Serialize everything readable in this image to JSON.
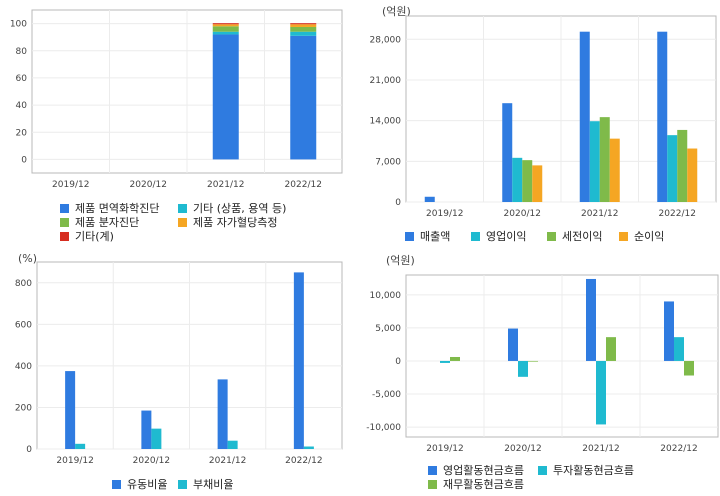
{
  "chart_data": [
    {
      "type": "bar",
      "stacked": true,
      "unit": "",
      "categories": [
        "2019/12",
        "2020/12",
        "2021/12",
        "2022/12"
      ],
      "ylim": [
        -10,
        110
      ],
      "yticks": [
        0,
        20,
        40,
        60,
        80,
        100
      ],
      "grid": true,
      "series": [
        {
          "name": "제품 면역화학진단",
          "color": "#2f7be0",
          "values": [
            0,
            0,
            92,
            91
          ]
        },
        {
          "name": "기타 (상품, 용역 등)",
          "color": "#1fbad0",
          "values": [
            0,
            0,
            2,
            3
          ]
        },
        {
          "name": "제품 분자진단",
          "color": "#7fba4a",
          "values": [
            0,
            0,
            4,
            3.5
          ]
        },
        {
          "name": "제품 자가혈당측정",
          "color": "#f5a623",
          "values": [
            0,
            0,
            1.5,
            2
          ]
        },
        {
          "name": "기타(계)",
          "color": "#d62d20",
          "values": [
            0,
            0,
            0.8,
            0.8
          ]
        }
      ]
    },
    {
      "type": "bar",
      "unit": "(억원)",
      "categories": [
        "2019/12",
        "2020/12",
        "2021/12",
        "2022/12"
      ],
      "ylim": [
        0,
        32000
      ],
      "yticks": [
        0,
        7000,
        14000,
        21000,
        28000
      ],
      "ytick_labels": [
        "0",
        "7,000",
        "14,000",
        "21,000",
        "28,000"
      ],
      "grid": true,
      "series": [
        {
          "name": "매출액",
          "color": "#2f7be0",
          "values": [
            900,
            17000,
            29300,
            29300
          ]
        },
        {
          "name": "영업이익",
          "color": "#1fbad0",
          "values": [
            0,
            7600,
            13900,
            11500
          ]
        },
        {
          "name": "세전이익",
          "color": "#7fba4a",
          "values": [
            0,
            7200,
            14600,
            12400
          ]
        },
        {
          "name": "순이익",
          "color": "#f5a623",
          "values": [
            0,
            6300,
            10900,
            9200
          ]
        }
      ]
    },
    {
      "type": "bar",
      "unit": "(%)",
      "categories": [
        "2019/12",
        "2020/12",
        "2021/12",
        "2022/12"
      ],
      "ylim": [
        0,
        900
      ],
      "yticks": [
        0,
        200,
        400,
        600,
        800
      ],
      "grid": true,
      "series": [
        {
          "name": "유동비율",
          "color": "#2f7be0",
          "values": [
            375,
            185,
            335,
            850
          ]
        },
        {
          "name": "부채비율",
          "color": "#1fbad0",
          "values": [
            25,
            98,
            40,
            12
          ]
        }
      ]
    },
    {
      "type": "bar",
      "unit": "(억원)",
      "categories": [
        "2019/12",
        "2020/12",
        "2021/12",
        "2022/12"
      ],
      "ylim": [
        -11500,
        13000
      ],
      "yticks": [
        -10000,
        -5000,
        0,
        5000,
        10000
      ],
      "ytick_labels": [
        "-10,000",
        "-5,000",
        "0",
        "5,000",
        "10,000"
      ],
      "grid": true,
      "series": [
        {
          "name": "영업활동현금흐름",
          "color": "#2f7be0",
          "values": [
            0,
            4900,
            12400,
            9000
          ]
        },
        {
          "name": "투자활동현금흐름",
          "color": "#1fbad0",
          "values": [
            -300,
            -2400,
            -9600,
            3600
          ]
        },
        {
          "name": "재무활동현금흐름",
          "color": "#7fba4a",
          "values": [
            600,
            -100,
            3600,
            -2200
          ]
        }
      ]
    }
  ]
}
